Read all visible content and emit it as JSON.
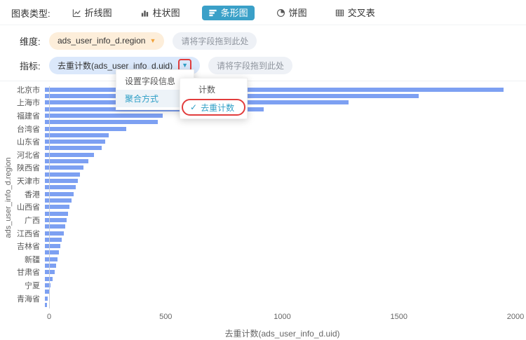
{
  "header": {
    "chart_type_label": "图表类型:",
    "chart_types": [
      {
        "label": "折线图",
        "icon": "line-chart-icon",
        "selected": false
      },
      {
        "label": "柱状图",
        "icon": "column-chart-icon",
        "selected": false
      },
      {
        "label": "条形图",
        "icon": "horizontal-bar-chart-icon",
        "selected": true
      },
      {
        "label": "饼图",
        "icon": "pie-chart-icon",
        "selected": false
      },
      {
        "label": "交叉表",
        "icon": "cross-table-icon",
        "selected": false
      }
    ]
  },
  "dimension_row": {
    "label": "维度:",
    "field_tag": "ads_user_info_d.region",
    "placeholder": "请将字段拖到此处"
  },
  "measure_row": {
    "label": "指标:",
    "field_tag": "去重计数(ads_user_info_d.uid)",
    "placeholder": "请将字段拖到此处"
  },
  "icons": {
    "dropdown_arrow": "▼",
    "submenu_arrow": "›",
    "check": "✓"
  },
  "context_menu": {
    "items": [
      {
        "label": "设置字段信息",
        "active": false,
        "has_submenu": false
      },
      {
        "label": "聚合方式",
        "active": true,
        "has_submenu": true
      }
    ],
    "submenu": [
      {
        "label": "计数",
        "checked": false,
        "highlighted": false
      },
      {
        "label": "去重计数",
        "checked": true,
        "highlighted": true
      }
    ]
  },
  "chart_data": {
    "type": "bar",
    "orientation": "horizontal",
    "title": "",
    "xlabel": "去重计数(ads_user_info_d.uid)",
    "ylabel": "ads_user_info_d.region",
    "xlim": [
      0,
      2000
    ],
    "x_ticks": [
      0,
      500,
      1000,
      1500,
      2000
    ],
    "grid": false,
    "legend": false,
    "visible_category_labels": [
      "北京市",
      "上海市",
      "福建省",
      "台湾省",
      "山东省",
      "河北省",
      "陕西省",
      "天津市",
      "香港",
      "山西省",
      "广西",
      "江西省",
      "吉林省",
      "新疆",
      "甘肃省",
      "宁夏",
      "青海省"
    ],
    "label_every_other_bar": true,
    "values": [
      1950,
      1590,
      1290,
      930,
      500,
      480,
      345,
      270,
      255,
      240,
      210,
      185,
      165,
      150,
      140,
      130,
      122,
      114,
      105,
      98,
      93,
      87,
      81,
      72,
      66,
      60,
      54,
      48,
      42,
      33,
      24,
      18,
      12,
      9
    ],
    "bar_color": "#7da0f2"
  },
  "colors": {
    "accent_teal": "#3aa0c8",
    "bar_blue": "#7da0f2",
    "highlight_red": "#e23c3c",
    "tag_orange_bg": "#fdeeda",
    "tag_blue_bg": "#dbe8fb",
    "placeholder_bg": "#eef1f6"
  }
}
